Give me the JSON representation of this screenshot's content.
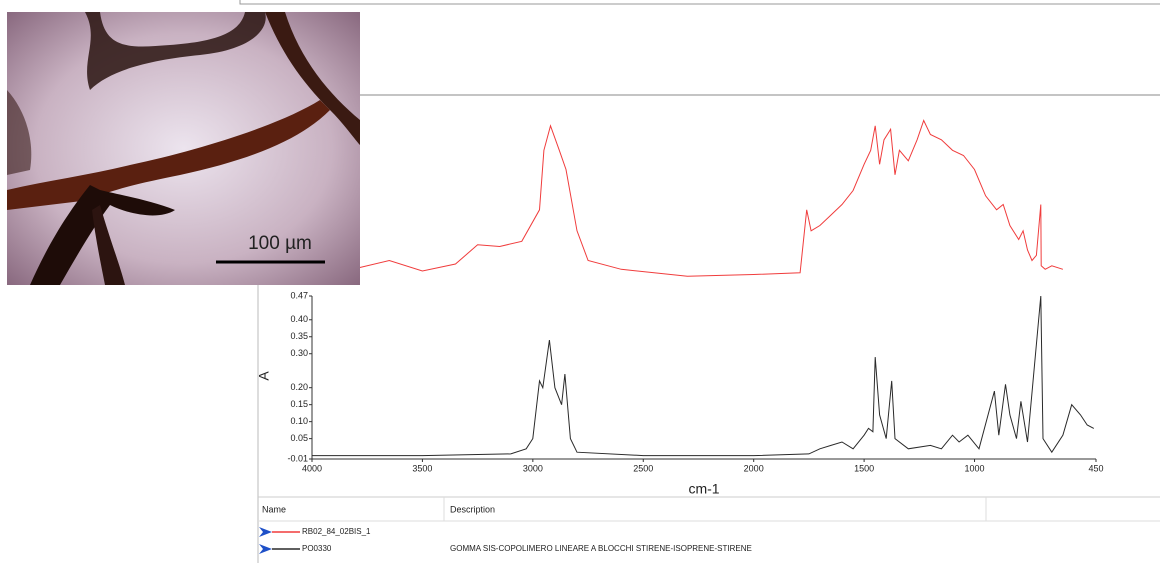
{
  "chart_data": [
    {
      "type": "line",
      "x": [
        3783,
        3650,
        3500,
        3350,
        3250,
        3150,
        3050,
        2970,
        2950,
        2920,
        2880,
        2850,
        2800,
        2750,
        2600,
        2300,
        2000,
        1790,
        1760,
        1740,
        1700,
        1650,
        1600,
        1550,
        1500,
        1470,
        1450,
        1430,
        1410,
        1380,
        1360,
        1340,
        1300,
        1260,
        1230,
        1200,
        1150,
        1100,
        1050,
        1000,
        950,
        900,
        870,
        840,
        800,
        780,
        760,
        740,
        720,
        700,
        698,
        680,
        650,
        600
      ],
      "series": [
        {
          "name": "RB02_84_02BIS_1",
          "color": "#f03c3c",
          "values": [
            0.1,
            0.14,
            0.08,
            0.12,
            0.23,
            0.22,
            0.25,
            0.43,
            0.77,
            0.91,
            0.77,
            0.66,
            0.31,
            0.14,
            0.09,
            0.05,
            0.06,
            0.07,
            0.43,
            0.31,
            0.34,
            0.4,
            0.46,
            0.54,
            0.69,
            0.77,
            0.91,
            0.69,
            0.83,
            0.89,
            0.63,
            0.77,
            0.71,
            0.83,
            0.94,
            0.86,
            0.83,
            0.77,
            0.74,
            0.66,
            0.51,
            0.43,
            0.46,
            0.34,
            0.26,
            0.31,
            0.2,
            0.14,
            0.17,
            0.46,
            0.11,
            0.09,
            0.11,
            0.09
          ]
        }
      ],
      "xlim": [
        4000,
        450
      ],
      "ylim": [
        0,
        1
      ]
    },
    {
      "type": "line",
      "x": [
        4000,
        3500,
        3100,
        3030,
        3000,
        2970,
        2955,
        2925,
        2900,
        2870,
        2855,
        2830,
        2800,
        2500,
        2000,
        1750,
        1700,
        1650,
        1600,
        1550,
        1500,
        1480,
        1460,
        1450,
        1430,
        1400,
        1375,
        1360,
        1300,
        1200,
        1150,
        1100,
        1070,
        1030,
        980,
        910,
        890,
        860,
        840,
        810,
        790,
        760,
        700,
        690,
        650,
        600,
        560,
        520,
        490,
        460
      ],
      "series": [
        {
          "name": "PO0330",
          "description": "GOMMA SIS-COPOLIMERO LINEARE A BLOCCHI STIRENE-ISOPRENE-STIRENE",
          "color": "#2a2a2a",
          "values": [
            0.0,
            0.0,
            0.005,
            0.02,
            0.05,
            0.22,
            0.2,
            0.34,
            0.2,
            0.15,
            0.24,
            0.05,
            0.01,
            0.0,
            0.0,
            0.005,
            0.02,
            0.03,
            0.04,
            0.02,
            0.06,
            0.08,
            0.07,
            0.29,
            0.12,
            0.05,
            0.22,
            0.05,
            0.02,
            0.03,
            0.02,
            0.06,
            0.04,
            0.06,
            0.02,
            0.19,
            0.06,
            0.21,
            0.12,
            0.05,
            0.16,
            0.04,
            0.47,
            0.05,
            0.01,
            0.06,
            0.15,
            0.12,
            0.09,
            0.08
          ]
        }
      ],
      "xlim": [
        4000,
        450
      ],
      "xticks": [
        4000,
        3500,
        3000,
        2500,
        2000,
        1500,
        1000,
        450
      ],
      "ylim": [
        -0.01,
        0.47
      ],
      "yticks": [
        -0.01,
        0.05,
        {
          "value": 0.1,
          "label": "0.10"
        },
        0.15,
        {
          "value": 0.2,
          "label": "0.20"
        },
        {
          "value": 0.3,
          "label": "0.30"
        },
        0.35,
        {
          "value": 0.4,
          "label": "0.40"
        },
        0.47
      ],
      "xlabel": "cm-1",
      "ylabel": "A"
    }
  ],
  "legend": {
    "headers": [
      "Name",
      "Description"
    ]
  },
  "micrograph": {
    "scale_bar_label": "100 µm"
  }
}
